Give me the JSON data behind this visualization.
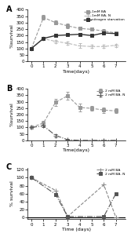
{
  "panel_A": {
    "label": "A",
    "ylabel": "%survival",
    "xlabel": "Time(days)",
    "ylim": [
      0,
      400
    ],
    "yticks": [
      0,
      50,
      100,
      150,
      200,
      250,
      300,
      350,
      400
    ],
    "xlim": [
      -0.3,
      7.8
    ],
    "xticks": [
      0,
      1,
      2,
      3,
      4,
      5,
      6,
      7
    ],
    "series": [
      {
        "label": "1mM BA",
        "x": [
          0,
          1,
          2,
          3,
          4,
          5,
          6,
          7
        ],
        "y": [
          100,
          340,
          300,
          275,
          255,
          248,
          235,
          220
        ],
        "yerr": [
          8,
          18,
          15,
          18,
          12,
          12,
          18,
          12
        ],
        "color": "#999999",
        "linestyle": "--",
        "marker": "s",
        "markersize": 2.5,
        "linewidth": 0.8
      },
      {
        "label": "1mM BA- N",
        "x": [
          0,
          1,
          2,
          3,
          4,
          5,
          6,
          7
        ],
        "y": [
          100,
          175,
          155,
          140,
          120,
          115,
          115,
          125
        ],
        "yerr": [
          8,
          12,
          12,
          12,
          18,
          12,
          12,
          12
        ],
        "color": "#bbbbbb",
        "linestyle": "--",
        "marker": "+",
        "markersize": 4,
        "linewidth": 0.8
      },
      {
        "label": "nitrogen starvation",
        "x": [
          0,
          1,
          2,
          3,
          4,
          5,
          6,
          7
        ],
        "y": [
          100,
          178,
          200,
          205,
          210,
          200,
          220,
          215
        ],
        "yerr": [
          8,
          8,
          8,
          8,
          8,
          8,
          8,
          8
        ],
        "color": "#333333",
        "linestyle": "-",
        "marker": "s",
        "markersize": 2.5,
        "linewidth": 1.0
      }
    ]
  },
  "panel_B": {
    "label": "B",
    "ylabel": "%survival",
    "xlabel": "Time(days)",
    "ylim": [
      0,
      400
    ],
    "yticks": [
      0,
      50,
      100,
      150,
      200,
      250,
      300,
      350,
      400
    ],
    "xlim": [
      -0.3,
      7.8
    ],
    "xticks": [
      0,
      1,
      2,
      3,
      4,
      5,
      6,
      7
    ],
    "series": [
      {
        "label": "2 mM BA",
        "x": [
          0,
          1,
          2,
          3,
          4,
          5,
          6,
          7
        ],
        "y": [
          100,
          135,
          295,
          345,
          255,
          248,
          235,
          228
        ],
        "yerr": [
          8,
          18,
          28,
          32,
          28,
          18,
          22,
          18
        ],
        "color": "#999999",
        "linestyle": "--",
        "marker": "s",
        "markersize": 2.5,
        "linewidth": 0.8
      },
      {
        "label": "2 mM BA- N",
        "x": [
          0,
          1,
          2,
          3,
          4,
          5,
          6,
          7
        ],
        "y": [
          100,
          112,
          38,
          5,
          0,
          0,
          0,
          0
        ],
        "yerr": [
          8,
          8,
          12,
          5,
          0,
          0,
          0,
          0
        ],
        "color": "#555555",
        "linestyle": "-.",
        "marker": "+",
        "markersize": 4,
        "linewidth": 0.8
      }
    ]
  },
  "panel_C": {
    "label": "C",
    "ylabel": "% survival",
    "xlabel": "Time (days)",
    "ylim": [
      -5,
      125
    ],
    "yticks": [
      0,
      20,
      40,
      60,
      80,
      100,
      120
    ],
    "xlim": [
      -0.3,
      7.8
    ],
    "xticks": [
      0,
      1,
      2,
      3,
      4,
      5,
      6,
      7
    ],
    "series": [
      {
        "label": "2 mM BA",
        "x": [
          0,
          2,
          3,
          6,
          7
        ],
        "y": [
          100,
          68,
          2,
          82,
          0
        ],
        "yerr": [
          0,
          0,
          0,
          0,
          0
        ],
        "color": "#888888",
        "linestyle": "--",
        "marker": "+",
        "markersize": 4,
        "linewidth": 0.8
      },
      {
        "label": "2 mM BA- N",
        "x": [
          0,
          2,
          3,
          6,
          7
        ],
        "y": [
          100,
          58,
          2,
          2,
          60
        ],
        "yerr": [
          0,
          0,
          0,
          0,
          0
        ],
        "color": "#555555",
        "linestyle": "-.",
        "marker": "s",
        "markersize": 2.5,
        "linewidth": 0.8
      }
    ]
  }
}
